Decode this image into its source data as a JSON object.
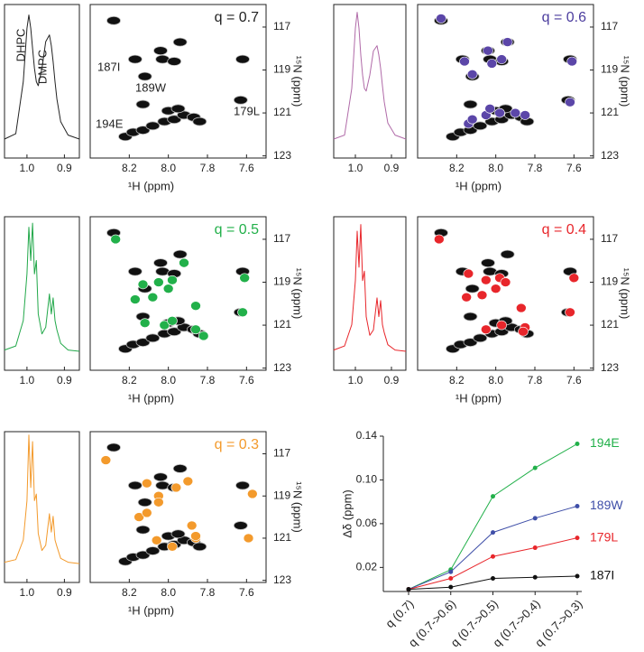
{
  "chart_data": [
    {
      "type": "spectrum",
      "color": "#222222",
      "annotations": [
        "DHPC",
        "DMPC"
      ],
      "x": [
        1.06,
        1.03,
        1.01,
        1.0,
        0.995,
        0.99,
        0.985,
        0.98,
        0.975,
        0.97,
        0.96,
        0.95,
        0.94,
        0.935,
        0.93,
        0.925,
        0.92,
        0.91,
        0.89,
        0.86
      ],
      "values": [
        0.02,
        0.06,
        0.45,
        0.85,
        0.95,
        0.85,
        0.7,
        0.55,
        0.45,
        0.42,
        0.55,
        0.75,
        0.8,
        0.72,
        0.6,
        0.45,
        0.32,
        0.15,
        0.05,
        0.02
      ],
      "xlim": [
        1.06,
        0.86
      ],
      "ylim": [
        0,
        1.15
      ],
      "xticks": [
        {
          "value": 1,
          "label": "1.0"
        },
        0.9
      ]
    },
    {
      "type": "scatter",
      "label": "q = 0.7",
      "label_color": "#222222",
      "annotations": [
        "187I",
        "189W",
        "194E",
        "179L"
      ],
      "xlabel": "¹H (ppm)",
      "ylabel": "¹⁵N (ppm)",
      "xlim": [
        8.4,
        7.5
      ],
      "ylim": [
        115.95,
        123.1
      ],
      "xticks": [
        8.2,
        {
          "value": 8,
          "label": "8.0"
        },
        7.8,
        7.6
      ],
      "yticks": [
        117,
        119,
        121,
        123
      ],
      "series": [
        {
          "color": "#111111",
          "x": [
            8.28,
            7.94,
            8.04,
            8.17,
            8.03,
            7.97,
            8.12,
            7.62,
            7.63,
            8.13,
            8.22,
            8.18,
            8.13,
            8.08,
            8.02,
            7.97,
            7.92,
            7.87,
            7.84,
            8.0,
            7.95
          ],
          "values": [
            116.7,
            117.7,
            118.1,
            118.5,
            118.5,
            118.6,
            119.3,
            118.5,
            120.4,
            120.6,
            122.1,
            121.9,
            121.8,
            121.6,
            121.4,
            121.3,
            121.1,
            121.2,
            121.4,
            120.9,
            120.8
          ]
        }
      ]
    },
    {
      "type": "spectrum",
      "color": "#b06aa8",
      "x": [
        1.06,
        1.03,
        1.01,
        1.0,
        0.995,
        0.99,
        0.985,
        0.98,
        0.975,
        0.97,
        0.96,
        0.95,
        0.94,
        0.935,
        0.93,
        0.925,
        0.92,
        0.91,
        0.89,
        0.86
      ],
      "values": [
        0.02,
        0.05,
        0.4,
        0.85,
        0.97,
        0.85,
        0.65,
        0.5,
        0.4,
        0.38,
        0.5,
        0.68,
        0.72,
        0.65,
        0.55,
        0.42,
        0.3,
        0.14,
        0.05,
        0.02
      ],
      "xlim": [
        1.06,
        0.86
      ],
      "ylim": [
        0,
        1.15
      ],
      "xticks": [
        {
          "value": 1,
          "label": "1.0"
        },
        0.9
      ]
    },
    {
      "type": "scatter",
      "label": "q = 0.6",
      "label_color": "#4b3c9e",
      "xlabel": "¹H (ppm)",
      "ylabel": "¹⁵N (ppm)",
      "xlim": [
        8.4,
        7.5
      ],
      "ylim": [
        115.95,
        123.1
      ],
      "xticks": [
        8.2,
        {
          "value": 8,
          "label": "8.0"
        },
        7.8,
        7.6
      ],
      "yticks": [
        117,
        119,
        121,
        123
      ],
      "series": [
        {
          "color": "#111111",
          "x": [
            8.28,
            7.94,
            8.04,
            8.17,
            8.03,
            7.97,
            8.12,
            7.62,
            7.63,
            8.13,
            8.22,
            8.18,
            8.13,
            8.08,
            8.02,
            7.97,
            7.92,
            7.87,
            7.84,
            8.0,
            7.95
          ],
          "values": [
            116.7,
            117.7,
            118.1,
            118.5,
            118.5,
            118.6,
            119.3,
            118.5,
            120.4,
            120.6,
            122.1,
            121.9,
            121.8,
            121.6,
            121.4,
            121.3,
            121.1,
            121.2,
            121.4,
            120.9,
            120.8
          ]
        },
        {
          "color": "#5b46a8",
          "x": [
            8.28,
            7.94,
            8.04,
            8.16,
            8.02,
            7.97,
            8.12,
            7.61,
            7.62,
            8.14,
            8.12,
            8.05,
            7.98,
            7.9,
            7.85,
            8.03
          ],
          "values": [
            116.6,
            117.7,
            118.1,
            118.6,
            118.7,
            118.5,
            119.2,
            118.6,
            120.5,
            121.5,
            121.3,
            121.1,
            121.0,
            121.0,
            121.1,
            120.8
          ]
        }
      ]
    },
    {
      "type": "spectrum",
      "color": "#22a84a",
      "x": [
        1.06,
        1.03,
        1.01,
        1.0,
        0.995,
        0.99,
        0.985,
        0.98,
        0.975,
        0.97,
        0.96,
        0.95,
        0.94,
        0.935,
        0.93,
        0.925,
        0.92,
        0.91,
        0.89,
        0.86
      ],
      "values": [
        0.03,
        0.06,
        0.25,
        0.6,
        0.95,
        0.7,
        0.98,
        0.6,
        0.7,
        0.3,
        0.15,
        0.2,
        0.45,
        0.3,
        0.42,
        0.25,
        0.18,
        0.08,
        0.03,
        0.02
      ],
      "xlim": [
        1.06,
        0.86
      ],
      "ylim": [
        0,
        1.15
      ],
      "xticks": [
        {
          "value": 1,
          "label": "1.0"
        },
        0.9
      ]
    },
    {
      "type": "scatter",
      "label": "q = 0.5",
      "label_color": "#22b04a",
      "xlabel": "¹H (ppm)",
      "ylabel": "¹⁵N (ppm)",
      "xlim": [
        8.4,
        7.5
      ],
      "ylim": [
        115.95,
        123.1
      ],
      "xticks": [
        8.2,
        {
          "value": 8,
          "label": "8.0"
        },
        7.8,
        7.6
      ],
      "yticks": [
        117,
        119,
        121,
        123
      ],
      "series": [
        {
          "color": "#111111",
          "x": [
            8.28,
            7.94,
            8.04,
            8.17,
            8.03,
            7.97,
            8.12,
            7.62,
            7.63,
            8.13,
            8.22,
            8.18,
            8.13,
            8.08,
            8.02,
            7.97,
            7.92,
            7.87,
            7.84,
            8.0,
            7.95
          ],
          "values": [
            116.7,
            117.7,
            118.1,
            118.5,
            118.5,
            118.6,
            119.3,
            118.5,
            120.4,
            120.6,
            122.1,
            121.9,
            121.8,
            121.6,
            121.4,
            121.3,
            121.1,
            121.2,
            121.4,
            120.9,
            120.8
          ]
        },
        {
          "color": "#22b04a",
          "x": [
            8.27,
            7.92,
            8.13,
            8.05,
            7.98,
            8.17,
            8.08,
            8.0,
            7.61,
            7.62,
            7.86,
            8.12,
            8.02,
            7.98,
            7.86,
            7.82
          ],
          "values": [
            117.0,
            118.1,
            119.1,
            119.0,
            118.9,
            119.8,
            119.7,
            119.3,
            118.8,
            120.4,
            120.1,
            120.9,
            121.0,
            120.8,
            121.2,
            121.5
          ]
        }
      ]
    },
    {
      "type": "spectrum",
      "color": "#e8262b",
      "x": [
        1.06,
        1.03,
        1.01,
        1.0,
        0.995,
        0.99,
        0.985,
        0.98,
        0.975,
        0.97,
        0.96,
        0.95,
        0.94,
        0.935,
        0.93,
        0.925,
        0.92,
        0.91,
        0.89,
        0.86
      ],
      "values": [
        0.03,
        0.06,
        0.22,
        0.55,
        0.92,
        0.65,
        0.97,
        0.55,
        0.62,
        0.28,
        0.14,
        0.18,
        0.42,
        0.28,
        0.4,
        0.22,
        0.16,
        0.07,
        0.03,
        0.02
      ],
      "xlim": [
        1.06,
        0.86
      ],
      "ylim": [
        0,
        1.15
      ],
      "xticks": [
        {
          "value": 1,
          "label": "1.0"
        },
        0.9
      ]
    },
    {
      "type": "scatter",
      "label": "q = 0.4",
      "label_color": "#e8262b",
      "xlabel": "¹H (ppm)",
      "ylabel": "¹⁵N (ppm)",
      "xlim": [
        8.4,
        7.5
      ],
      "ylim": [
        115.95,
        123.1
      ],
      "xticks": [
        8.2,
        {
          "value": 8,
          "label": "8.0"
        },
        7.8,
        7.6
      ],
      "yticks": [
        117,
        119,
        121,
        123
      ],
      "series": [
        {
          "color": "#111111",
          "x": [
            8.28,
            7.94,
            8.04,
            8.17,
            8.03,
            7.97,
            8.12,
            7.62,
            7.63,
            8.13,
            8.22,
            8.18,
            8.13,
            8.08,
            8.02,
            7.97,
            7.92,
            7.87,
            7.84,
            8.0,
            7.95
          ],
          "values": [
            116.7,
            117.7,
            118.1,
            118.5,
            118.5,
            118.6,
            119.3,
            118.5,
            120.4,
            120.6,
            122.1,
            121.9,
            121.8,
            121.6,
            121.4,
            121.3,
            121.1,
            121.2,
            121.4,
            120.9,
            120.8
          ]
        },
        {
          "color": "#e8262b",
          "x": [
            8.29,
            8.14,
            8.05,
            7.98,
            7.95,
            8.15,
            8.07,
            8.0,
            7.87,
            7.85,
            8.05,
            7.97,
            7.86,
            7.6,
            7.62
          ],
          "values": [
            117.0,
            118.6,
            118.9,
            118.8,
            119.0,
            119.7,
            119.6,
            119.3,
            120.2,
            121.1,
            121.2,
            121.0,
            121.3,
            118.8,
            120.4
          ]
        }
      ]
    },
    {
      "type": "spectrum",
      "color": "#f39a2c",
      "x": [
        1.06,
        1.03,
        1.01,
        1.0,
        0.995,
        0.99,
        0.985,
        0.98,
        0.975,
        0.97,
        0.96,
        0.95,
        0.94,
        0.935,
        0.93,
        0.925,
        0.92,
        0.91,
        0.89,
        0.86
      ],
      "values": [
        0.03,
        0.05,
        0.2,
        0.5,
        1.0,
        0.6,
        0.95,
        0.5,
        0.55,
        0.25,
        0.12,
        0.16,
        0.4,
        0.26,
        0.38,
        0.2,
        0.15,
        0.06,
        0.03,
        0.02
      ],
      "xlim": [
        1.06,
        0.86
      ],
      "ylim": [
        0,
        1.15
      ],
      "xticks": [
        {
          "value": 1,
          "label": "1.0"
        },
        0.9
      ]
    },
    {
      "type": "scatter",
      "label": "q = 0.3",
      "label_color": "#f39a2c",
      "xlabel": "¹H (ppm)",
      "ylabel": "¹⁵N (ppm)",
      "xlim": [
        8.4,
        7.5
      ],
      "ylim": [
        115.95,
        123.1
      ],
      "xticks": [
        8.2,
        {
          "value": 8,
          "label": "8.0"
        },
        7.8,
        7.6
      ],
      "yticks": [
        117,
        119,
        121,
        123
      ],
      "series": [
        {
          "color": "#111111",
          "x": [
            8.28,
            7.94,
            8.04,
            8.17,
            8.03,
            7.97,
            8.12,
            7.62,
            7.63,
            8.13,
            8.22,
            8.18,
            8.13,
            8.08,
            8.02,
            7.97,
            7.92,
            7.87,
            7.84,
            8.0,
            7.95
          ],
          "values": [
            116.7,
            117.7,
            118.1,
            118.5,
            118.5,
            118.6,
            119.3,
            118.5,
            120.4,
            120.6,
            122.1,
            121.9,
            121.8,
            121.6,
            121.4,
            121.3,
            121.1,
            121.2,
            121.4,
            120.9,
            120.8
          ]
        },
        {
          "color": "#f39a2c",
          "x": [
            8.32,
            8.11,
            8.05,
            7.96,
            7.9,
            8.15,
            8.11,
            8.05,
            7.88,
            7.86,
            8.06,
            7.98,
            7.86,
            7.57,
            7.59
          ],
          "values": [
            117.3,
            118.4,
            119.0,
            118.6,
            118.3,
            120.0,
            119.8,
            119.3,
            120.4,
            121.0,
            121.1,
            121.4,
            120.9,
            118.9,
            121.0
          ]
        }
      ]
    },
    {
      "type": "line",
      "ylabel": "Δδ (ppm)",
      "categories": [
        "q (0.7)",
        "q (0.7->0.6)",
        "q (0.7->0.5)",
        "q (0.7->0.4)",
        "q (0.7->0.3)"
      ],
      "ylim": [
        -0.002,
        0.14
      ],
      "yticks": [
        0.02,
        0.06,
        {
          "value": 0.1,
          "label": "0.10"
        },
        0.14
      ],
      "series": [
        {
          "name": "194E",
          "color": "#22b04a",
          "values": [
            0,
            0.018,
            0.085,
            0.111,
            0.133
          ]
        },
        {
          "name": "189W",
          "color": "#3f4fa8",
          "values": [
            0,
            0.016,
            0.052,
            0.065,
            0.076
          ]
        },
        {
          "name": "179L",
          "color": "#e8262b",
          "values": [
            0,
            0.01,
            0.03,
            0.038,
            0.047
          ]
        },
        {
          "name": "187I",
          "color": "#111111",
          "values": [
            0,
            0.002,
            0.01,
            0.011,
            0.012
          ]
        }
      ]
    }
  ]
}
